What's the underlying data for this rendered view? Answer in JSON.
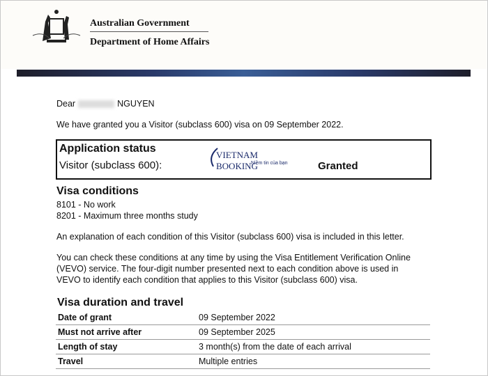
{
  "header": {
    "gov": "Australian Government",
    "dept": "Department of Home Affairs"
  },
  "letter": {
    "salutation": "Dear",
    "surname": "NGUYEN",
    "intro": "We have granted you a Visitor (subclass 600) visa on 09 September 2022.",
    "status": {
      "title": "Application status",
      "visa": "Visitor (subclass 600):",
      "value": "Granted",
      "watermark": "VIETNAM BOOKING",
      "watermark_tagline": "Niềm tin của bạn"
    },
    "conditions": {
      "title": "Visa conditions",
      "items": [
        "8101 - No work",
        "8201 - Maximum three months study"
      ]
    },
    "para1": "An explanation of each condition of this Visitor (subclass 600) visa is included in this letter.",
    "para2_lines": [
      "You can check these conditions at any time by using the Visa Entitlement Verification Online",
      "(VEVO) service. The four-digit number presented next to each condition above is used in",
      "VEVO to identify each condition that applies to this Visitor (subclass 600) visa."
    ],
    "duration": {
      "title": "Visa duration and travel",
      "rows": [
        {
          "k": "Date of grant",
          "v": "09 September 2022"
        },
        {
          "k": "Must not arrive after",
          "v": "09 September 2025"
        },
        {
          "k": "Length of stay",
          "v": "3 month(s) from the date of each arrival"
        },
        {
          "k": "Travel",
          "v": "Multiple entries"
        }
      ]
    }
  }
}
